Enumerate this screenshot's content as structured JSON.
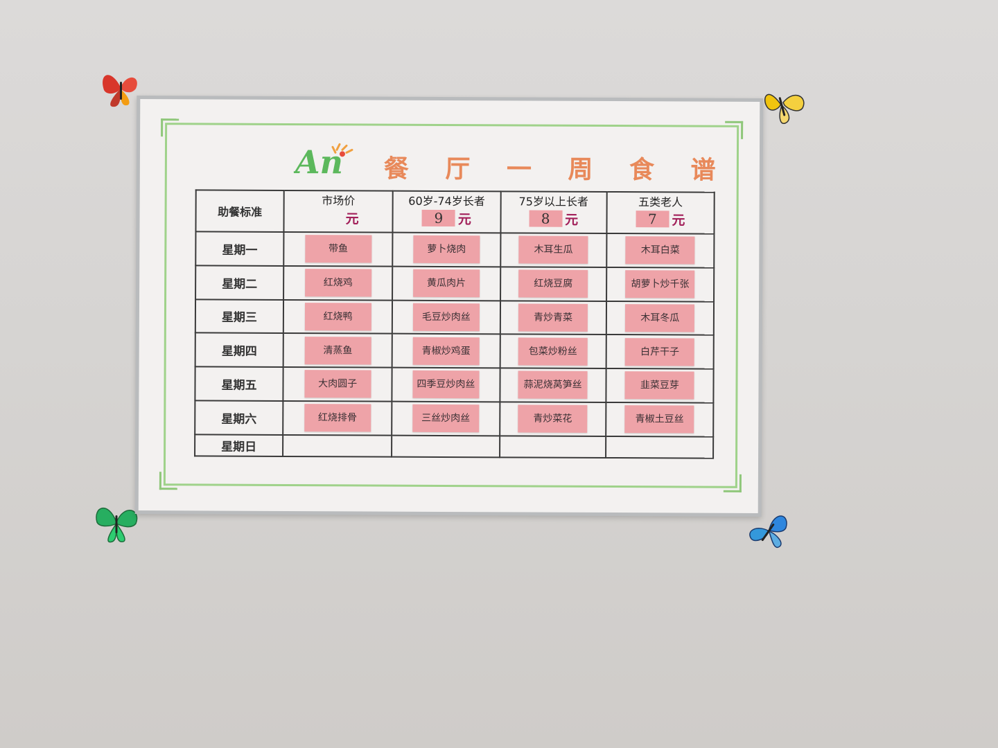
{
  "board": {
    "title": "餐 厅 一 周 食 谱",
    "logo_text": "An"
  },
  "table": {
    "corner_label": "助餐标准",
    "columns": [
      {
        "name": "市场价",
        "price": "",
        "unit": "元"
      },
      {
        "name": "60岁-74岁长者",
        "price": "9",
        "unit": "元"
      },
      {
        "name": "75岁以上长者",
        "price": "8",
        "unit": "元"
      },
      {
        "name": "五类老人",
        "price": "7",
        "unit": "元"
      }
    ],
    "rows": [
      {
        "day": "星期一",
        "dishes": [
          "带鱼",
          "萝卜烧肉",
          "木耳生瓜",
          "木耳白菜"
        ]
      },
      {
        "day": "星期二",
        "dishes": [
          "红烧鸡",
          "黄瓜肉片",
          "红烧豆腐",
          "胡萝卜炒千张"
        ]
      },
      {
        "day": "星期三",
        "dishes": [
          "红烧鸭",
          "毛豆炒肉丝",
          "青炒青菜",
          "木耳冬瓜"
        ]
      },
      {
        "day": "星期四",
        "dishes": [
          "清蒸鱼",
          "青椒炒鸡蛋",
          "包菜炒粉丝",
          "白芹干子"
        ]
      },
      {
        "day": "星期五",
        "dishes": [
          "大肉圆子",
          "四季豆炒肉丝",
          "蒜泥烧莴笋丝",
          "韭菜豆芽"
        ]
      },
      {
        "day": "星期六",
        "dishes": [
          "红烧排骨",
          "三丝炒肉丝",
          "青炒菜花",
          "青椒土豆丝"
        ]
      },
      {
        "day": "星期日",
        "dishes": [
          "",
          "",
          "",
          ""
        ]
      }
    ]
  },
  "colors": {
    "wall": "#d6d4d2",
    "frame": "#b9bbbd",
    "board": "#f3f1f0",
    "green_border": "#9fd28a",
    "title": "#e8895a",
    "dish_card": "#eea3a8",
    "price_unit": "#a2205a"
  },
  "decorations": [
    "red-butterfly-icon",
    "yellow-butterfly-icon",
    "green-butterfly-icon",
    "blue-butterfly-icon"
  ]
}
